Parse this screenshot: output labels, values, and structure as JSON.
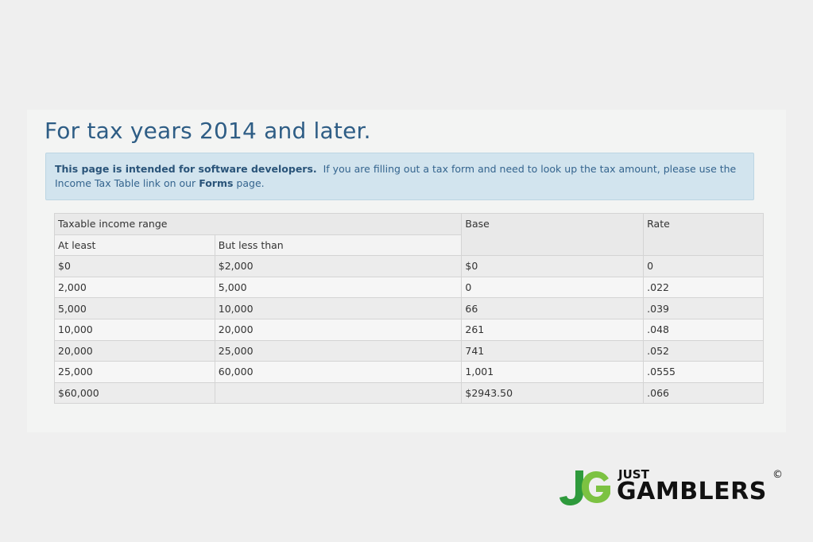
{
  "page": {
    "title": "For tax years 2014 and later.",
    "notice": {
      "bold_lead": "This page is intended for software developers.",
      "text_before_link": "If you are filling out a tax form and need to look up the tax amount, please use the Income Tax Table link on our",
      "link_text": "Forms",
      "text_after_link": "page."
    }
  },
  "table": {
    "headers": {
      "range": "Taxable income range",
      "at_least": "At least",
      "but_less_than": "But less than",
      "base": "Base",
      "rate": "Rate"
    },
    "rows": [
      {
        "at_least": "$0",
        "but_less_than": "$2,000",
        "base": "$0",
        "rate": "0"
      },
      {
        "at_least": "2,000",
        "but_less_than": "5,000",
        "base": "0",
        "rate": ".022"
      },
      {
        "at_least": "5,000",
        "but_less_than": "10,000",
        "base": "66",
        "rate": ".039"
      },
      {
        "at_least": "10,000",
        "but_less_than": "20,000",
        "base": "261",
        "rate": ".048"
      },
      {
        "at_least": "20,000",
        "but_less_than": "25,000",
        "base": "741",
        "rate": ".052"
      },
      {
        "at_least": "25,000",
        "but_less_than": "60,000",
        "base": "1,001",
        "rate": ".0555"
      },
      {
        "at_least": "$60,000",
        "but_less_than": "",
        "base": "$2943.50",
        "rate": ".066"
      }
    ]
  },
  "logo": {
    "small": "JUST",
    "big": "GAMBLERS",
    "copyright": "©",
    "colors": {
      "green_dark": "#2e9a3c",
      "green_light": "#7cc242",
      "text": "#111111"
    }
  }
}
